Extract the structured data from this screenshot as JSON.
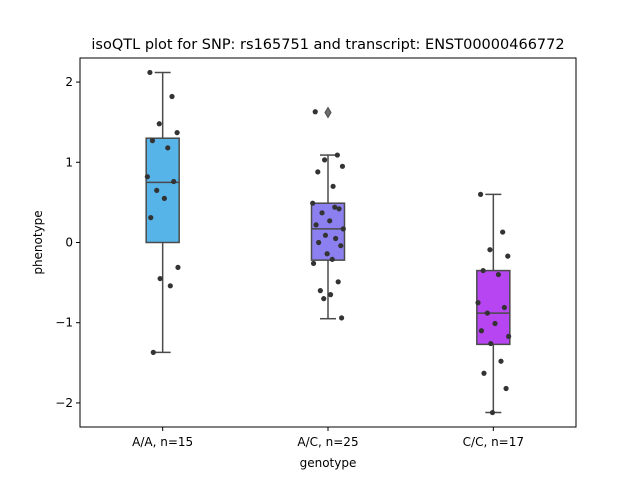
{
  "chart_data": {
    "type": "box",
    "title": "isoQTL plot for SNP: rs165751 and transcript: ENST00000466772",
    "xlabel": "genotype",
    "ylabel": "phenotype",
    "ylim": [
      -2.3,
      2.3
    ],
    "yticks": [
      -2,
      -1,
      0,
      1,
      2
    ],
    "grid": false,
    "categories": [
      "A/A, n=15",
      "A/C, n=25",
      "C/C, n=17"
    ],
    "boxes": [
      {
        "color": "#56b4e9",
        "whisker_low": -1.37,
        "q1": 0.0,
        "median": 0.75,
        "q3": 1.3,
        "whisker_high": 2.12,
        "outliers": []
      },
      {
        "color": "#8c7ff0",
        "whisker_low": -0.95,
        "q1": -0.22,
        "median": 0.17,
        "q3": 0.49,
        "whisker_high": 1.09,
        "outliers": [
          1.62
        ]
      },
      {
        "color": "#b845f2",
        "whisker_low": -2.12,
        "q1": -1.27,
        "median": -0.88,
        "q3": -0.35,
        "whisker_high": 0.6,
        "outliers": []
      }
    ],
    "points": [
      {
        "category": 0,
        "values": [
          2.12,
          1.82,
          1.48,
          1.37,
          1.27,
          1.18,
          0.82,
          0.76,
          0.65,
          0.55,
          0.31,
          -0.31,
          -0.45,
          -0.54,
          -1.37
        ]
      },
      {
        "category": 1,
        "values": [
          1.63,
          1.09,
          1.03,
          0.95,
          0.88,
          0.7,
          0.49,
          0.42,
          0.37,
          0.27,
          0.22,
          0.17,
          0.09,
          0.05,
          0.0,
          -0.04,
          -0.14,
          -0.21,
          -0.26,
          -0.49,
          -0.6,
          -0.65,
          -0.7,
          -0.94,
          0.44
        ]
      },
      {
        "category": 2,
        "values": [
          0.6,
          0.13,
          -0.09,
          -0.17,
          -0.35,
          -0.4,
          -0.75,
          -0.81,
          -0.88,
          -1.01,
          -1.1,
          -1.17,
          -1.26,
          -1.48,
          -1.63,
          -1.82,
          -2.12
        ]
      }
    ]
  }
}
